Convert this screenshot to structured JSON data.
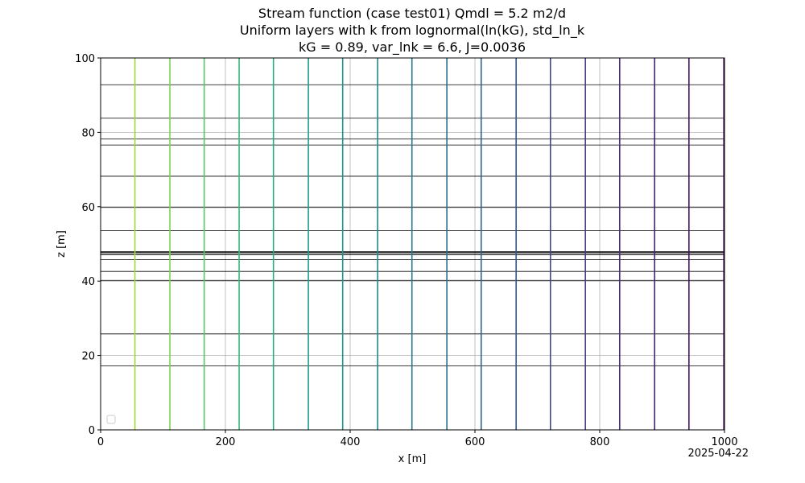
{
  "chart_data": {
    "type": "line",
    "title_lines": [
      "Stream function (case test01) Qmdl = 5.2 m2/d",
      "Uniform layers with k from lognormal(ln(kG), std_ln_k",
      "kG = 0.89, var_lnk = 6.6, J=0.0036"
    ],
    "xlabel": "x [m]",
    "ylabel": "z [m]",
    "xlim": [
      0,
      1000
    ],
    "ylim": [
      0,
      100
    ],
    "xticks": [
      0,
      200,
      400,
      600,
      800,
      1000
    ],
    "yticks": [
      0,
      20,
      40,
      60,
      80,
      100
    ],
    "grid": true,
    "legend": "lower-left, empty",
    "date_stamp": "2025-04-22",
    "layer_boundaries_z": [
      17.2,
      25.8,
      40.2,
      42.6,
      45.8,
      47.1,
      47.4,
      47.7,
      47.9,
      53.6,
      59.8,
      68.2,
      76.6,
      78.2,
      83.8,
      92.8
    ],
    "stream_lines": [
      {
        "x": 55,
        "color": "#a0da39"
      },
      {
        "x": 111,
        "color": "#7ad151"
      },
      {
        "x": 166,
        "color": "#56c667"
      },
      {
        "x": 222,
        "color": "#3aba76"
      },
      {
        "x": 277,
        "color": "#25ac82"
      },
      {
        "x": 333,
        "color": "#1e9e89"
      },
      {
        "x": 388,
        "color": "#1f928c"
      },
      {
        "x": 444,
        "color": "#23868d"
      },
      {
        "x": 499,
        "color": "#277a8e"
      },
      {
        "x": 555,
        "color": "#2b6e8e"
      },
      {
        "x": 610,
        "color": "#30628d"
      },
      {
        "x": 666,
        "color": "#35568b"
      },
      {
        "x": 721,
        "color": "#3b4a89"
      },
      {
        "x": 777,
        "color": "#413d84"
      },
      {
        "x": 832,
        "color": "#46307c"
      },
      {
        "x": 888,
        "color": "#482373"
      },
      {
        "x": 943,
        "color": "#471466"
      },
      {
        "x": 999,
        "color": "#440154"
      }
    ]
  }
}
